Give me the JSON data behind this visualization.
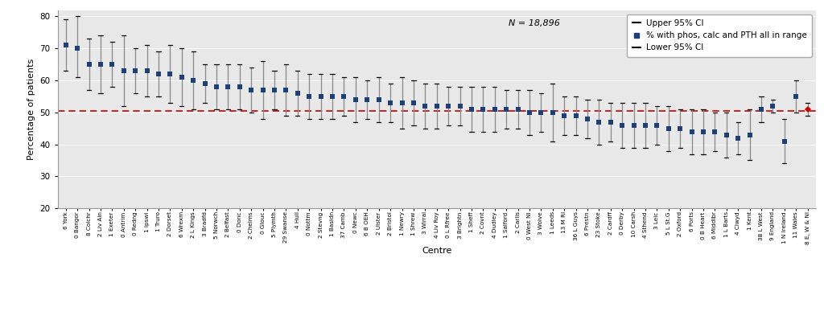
{
  "centres": [
    "6 York",
    "0 Bangor",
    "8 Colchr",
    "2 Liv Ain",
    "1 Exeter",
    "0 Antrim",
    "0 Redng",
    "1 Ipswi",
    "1 Truro",
    "2 Dorset",
    "6 Wrexm",
    "2 L Kings",
    "3 Bradfd",
    "5 Norwch",
    "2 Belfast",
    "0 Donc",
    "2 Chelms",
    "0 Glouc",
    "5 Plymth",
    "29 Swanse",
    "4 Hull",
    "0 Nottm",
    "2 Stevng",
    "1 Basldn",
    "37 Camb",
    "0 Newc",
    "6 B OEH",
    "2 Ulster",
    "2 Bristol",
    "1 Newry",
    "1 Shrew",
    "3 Wirral",
    "4 Liv Roy",
    "0 L Rfree",
    "3 Brightn",
    "1 Sheff",
    "2 Covnt",
    "4 Dudley",
    "1 Salford",
    "2 Carlis",
    "0 West NI",
    "3 Wolve",
    "1 Leeds",
    "13 M RI",
    "36 L Guys",
    "6 Prestn",
    "23 Stoke",
    "2 Cardff",
    "0 Derby",
    "10 Carsh",
    "4 Sthend",
    "3 Leic",
    "5 L St.G",
    "2 Oxford",
    "6 Ports",
    "0 B Heart",
    "6 Middlbr",
    "1 L Barts",
    "4 Clwyd",
    "1 Kent",
    "38 L West",
    "9 England",
    "1 N Ireland",
    "11 Wales",
    "8 E, W & NI"
  ],
  "values": [
    71,
    70,
    65,
    65,
    65,
    63,
    63,
    63,
    62,
    62,
    61,
    60,
    59,
    58,
    58,
    58,
    57,
    57,
    57,
    57,
    56,
    55,
    55,
    55,
    55,
    54,
    54,
    54,
    53,
    53,
    53,
    52,
    52,
    52,
    52,
    51,
    51,
    51,
    51,
    51,
    50,
    50,
    50,
    49,
    49,
    48,
    47,
    47,
    46,
    46,
    46,
    46,
    45,
    45,
    44,
    44,
    44,
    43,
    42,
    43,
    51,
    52,
    41,
    55,
    51
  ],
  "upper_ci": [
    79,
    80,
    73,
    74,
    72,
    74,
    70,
    71,
    69,
    71,
    70,
    69,
    65,
    65,
    65,
    65,
    64,
    66,
    63,
    65,
    63,
    62,
    62,
    62,
    61,
    61,
    60,
    61,
    59,
    61,
    60,
    59,
    59,
    58,
    58,
    58,
    58,
    58,
    57,
    57,
    57,
    56,
    59,
    55,
    55,
    54,
    54,
    53,
    53,
    53,
    53,
    52,
    52,
    51,
    51,
    51,
    50,
    50,
    47,
    51,
    55,
    54,
    48,
    60,
    53
  ],
  "lower_ci": [
    63,
    61,
    57,
    56,
    58,
    52,
    56,
    55,
    55,
    53,
    52,
    51,
    53,
    51,
    51,
    51,
    50,
    48,
    51,
    49,
    49,
    48,
    48,
    48,
    49,
    47,
    48,
    47,
    47,
    45,
    46,
    45,
    45,
    46,
    46,
    44,
    44,
    44,
    45,
    45,
    43,
    44,
    41,
    43,
    43,
    42,
    40,
    41,
    39,
    39,
    39,
    40,
    38,
    39,
    37,
    37,
    38,
    36,
    37,
    35,
    47,
    50,
    34,
    50,
    49
  ],
  "highlight_index": 64,
  "highlight_color": "#cc0000",
  "bar_color": "#1f3f7a",
  "line_color": "#888888",
  "bg_color": "#e8e8e8",
  "dashed_line_y": 50.5,
  "dashed_color": "#cc0000",
  "ylabel": "Percentage of patients",
  "xlabel": "Centre",
  "n_label": "N = 18,896",
  "legend_entries": [
    "Upper 95% CI",
    "% with phos, calc and PTH all in range",
    "Lower 95% CI"
  ],
  "ylim": [
    20,
    82
  ],
  "yticks": [
    20,
    30,
    40,
    50,
    60,
    70,
    80
  ]
}
